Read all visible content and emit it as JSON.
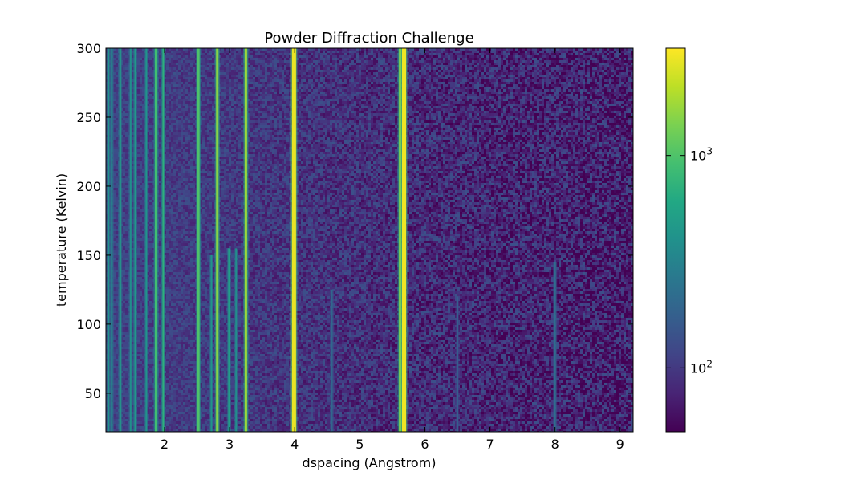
{
  "chart_data": {
    "type": "heatmap",
    "title": "Powder Diffraction Challenge",
    "xlabel": "dspacing (Angstrom)",
    "ylabel": "temperature (Kelvin)",
    "xlim": [
      1.1,
      9.2
    ],
    "ylim": [
      22,
      300
    ],
    "x_ticks": [
      {
        "value": 2,
        "label": "2"
      },
      {
        "value": 3,
        "label": "3"
      },
      {
        "value": 4,
        "label": "4"
      },
      {
        "value": 5,
        "label": "5"
      },
      {
        "value": 6,
        "label": "6"
      },
      {
        "value": 7,
        "label": "7"
      },
      {
        "value": 8,
        "label": "8"
      },
      {
        "value": 9,
        "label": "9"
      }
    ],
    "y_ticks": [
      {
        "value": 50,
        "label": "50"
      },
      {
        "value": 100,
        "label": "100"
      },
      {
        "value": 150,
        "label": "150"
      },
      {
        "value": 200,
        "label": "200"
      },
      {
        "value": 250,
        "label": "250"
      },
      {
        "value": 300,
        "label": "300"
      }
    ],
    "colorbar": {
      "colormap": "viridis",
      "scale": "log",
      "range": [
        50,
        3200
      ],
      "ticks": [
        {
          "value": 100,
          "base": "10",
          "exponent": "2"
        },
        {
          "value": 1000,
          "base": "10",
          "exponent": "3"
        }
      ]
    },
    "grid": false,
    "background_intensity_low_d": 110,
    "background_intensity_high_d": 70,
    "peaks": [
      {
        "d": 1.14,
        "intensity": 400,
        "t_min": 22,
        "t_max": 300
      },
      {
        "d": 1.19,
        "intensity": 350,
        "t_min": 22,
        "t_max": 300
      },
      {
        "d": 1.32,
        "intensity": 500,
        "t_min": 22,
        "t_max": 300
      },
      {
        "d": 1.48,
        "intensity": 380,
        "t_min": 22,
        "t_max": 300
      },
      {
        "d": 1.55,
        "intensity": 450,
        "t_min": 22,
        "t_max": 300
      },
      {
        "d": 1.72,
        "intensity": 420,
        "t_min": 22,
        "t_max": 300
      },
      {
        "d": 1.87,
        "intensity": 900,
        "t_min": 22,
        "t_max": 300
      },
      {
        "d": 1.98,
        "intensity": 700,
        "t_min": 22,
        "t_max": 300
      },
      {
        "d": 2.52,
        "intensity": 1000,
        "t_min": 22,
        "t_max": 300
      },
      {
        "d": 2.72,
        "intensity": 420,
        "t_min": 22,
        "t_max": 150
      },
      {
        "d": 2.81,
        "intensity": 1500,
        "t_min": 22,
        "t_max": 300
      },
      {
        "d": 2.99,
        "intensity": 500,
        "t_min": 22,
        "t_max": 155
      },
      {
        "d": 3.1,
        "intensity": 380,
        "t_min": 22,
        "t_max": 155
      },
      {
        "d": 3.25,
        "intensity": 1700,
        "t_min": 22,
        "t_max": 300
      },
      {
        "d": 3.99,
        "intensity": 2800,
        "t_min": 22,
        "t_max": 300
      },
      {
        "d": 4.57,
        "intensity": 200,
        "t_min": 22,
        "t_max": 125
      },
      {
        "d": 5.62,
        "intensity": 1400,
        "t_min": 22,
        "t_max": 300
      },
      {
        "d": 5.68,
        "intensity": 2900,
        "t_min": 22,
        "t_max": 300
      },
      {
        "d": 6.5,
        "intensity": 170,
        "t_min": 22,
        "t_max": 120
      },
      {
        "d": 8.0,
        "intensity": 220,
        "t_min": 22,
        "t_max": 145
      }
    ]
  }
}
